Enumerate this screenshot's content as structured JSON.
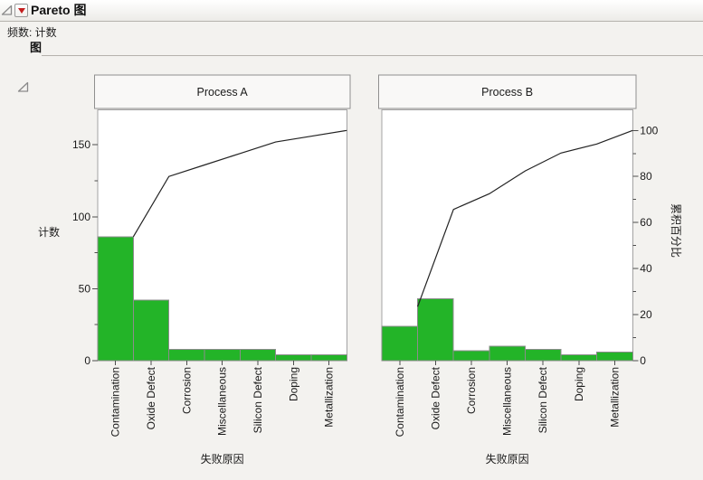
{
  "report": {
    "title": "Pareto 图",
    "frequency_label": "频数: 计数",
    "section_title": "图"
  },
  "colors": {
    "page_bg": "#f3f2ef",
    "plot_bg": "#ffffff",
    "panel_header_bg": "#f9f8f7",
    "panel_border": "#8f8f8f",
    "frame_border": "#a3a3a3",
    "bar_fill": "#23b428",
    "bar_stroke": "#8c8c8c",
    "cumulative_line": "#222222",
    "tick": "#4d4d4d",
    "accent_red": "#c41e1e"
  },
  "chart_data": [
    {
      "type": "pareto",
      "title": "Process A",
      "categories": [
        "Contamination",
        "Oxide Defect",
        "Corrosion",
        "Miscellaneous",
        "Silicon Defect",
        "Doping",
        "Metallization"
      ],
      "values": [
        86,
        42,
        8,
        8,
        8,
        4,
        4
      ],
      "total": 160,
      "cumulative_percent": [
        53.8,
        80.0,
        85.0,
        90.0,
        95.0,
        97.5,
        100.0
      ],
      "xlabel": "失败原因",
      "ylabel": "计数",
      "yticks": [
        0,
        50,
        100,
        150
      ],
      "yticks_minor": [
        25,
        75,
        125
      ],
      "ylim": [
        0,
        174
      ],
      "grid": false,
      "legend": "none"
    },
    {
      "type": "pareto",
      "title": "Process B",
      "categories": [
        "Contamination",
        "Oxide Defect",
        "Corrosion",
        "Miscellaneous",
        "Silicon Defect",
        "Doping",
        "Metallization"
      ],
      "values": [
        24,
        43,
        7,
        10,
        8,
        4,
        6
      ],
      "total": 102,
      "cumulative_percent": [
        23.5,
        65.7,
        72.5,
        82.4,
        90.2,
        94.1,
        100.0
      ],
      "xlabel": "失败原因",
      "ylabel": "累积百分比",
      "yticks": [
        0,
        20,
        40,
        60,
        80,
        100
      ],
      "yticks_minor": [
        10,
        30,
        50,
        70,
        90
      ],
      "ylim": [
        0,
        108.8
      ],
      "grid": false,
      "legend": "none"
    }
  ]
}
